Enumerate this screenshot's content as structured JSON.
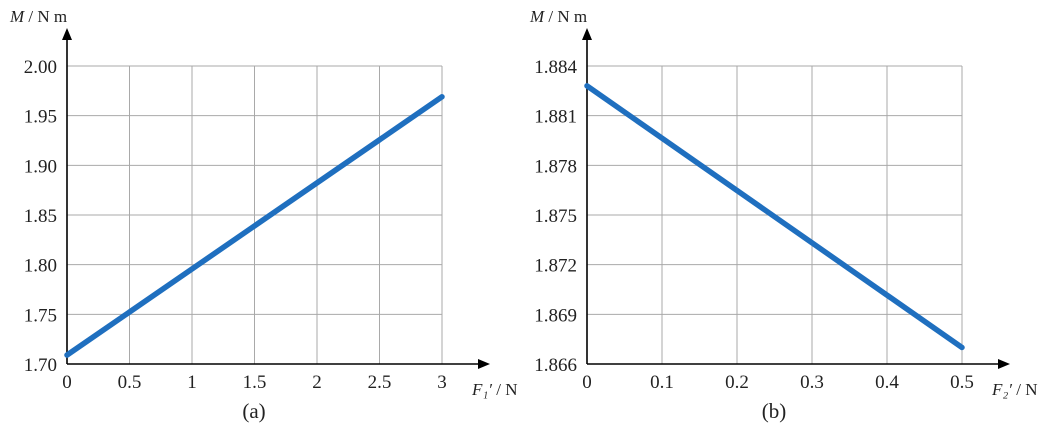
{
  "chart_data": [
    {
      "type": "line",
      "caption": "(a)",
      "xlabel": "F₁′ / N",
      "ylabel": "M / N m",
      "xlim": [
        0,
        3
      ],
      "ylim": [
        1.7,
        2.0
      ],
      "xticks": [
        "0",
        "0.5",
        "1",
        "1.5",
        "2",
        "2.5",
        "3"
      ],
      "yticks": [
        "1.70",
        "1.75",
        "1.80",
        "1.85",
        "1.90",
        "1.95",
        "2.00"
      ],
      "grid": true,
      "series": [
        {
          "x": [
            0,
            3
          ],
          "y": [
            1.709,
            1.969
          ],
          "color": "#1f6fbf"
        }
      ]
    },
    {
      "type": "line",
      "caption": "(b)",
      "xlabel": "F₂′ / N",
      "ylabel": "M / N m",
      "xlim": [
        0,
        0.5
      ],
      "ylim": [
        1.866,
        1.884
      ],
      "xticks": [
        "0",
        "0.1",
        "0.2",
        "0.3",
        "0.4",
        "0.5"
      ],
      "yticks": [
        "1.866",
        "1.869",
        "1.872",
        "1.875",
        "1.878",
        "1.881",
        "1.884"
      ],
      "grid": true,
      "series": [
        {
          "x": [
            0,
            0.5
          ],
          "y": [
            1.8828,
            1.867
          ],
          "color": "#1f6fbf"
        }
      ]
    }
  ]
}
